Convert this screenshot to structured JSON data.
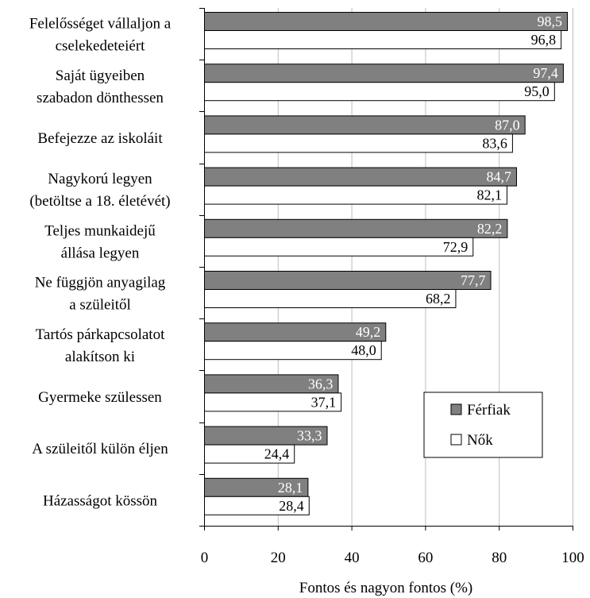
{
  "chart_data": {
    "type": "bar",
    "orientation": "horizontal",
    "categories": [
      [
        "Felelősséget vállaljon a",
        "cselekedeteiért"
      ],
      [
        "Saját ügyeiben",
        "szabadon dönthessen"
      ],
      [
        "Befejezze az iskoláit"
      ],
      [
        "Nagykorú legyen",
        "(betöltse a 18. életévét)"
      ],
      [
        "Teljes munkaidejű",
        "állása legyen"
      ],
      [
        "Ne függjön anyagilag",
        "a szüleitől"
      ],
      [
        "Tartós párkapcsolatot",
        "alakítson ki"
      ],
      [
        "Gyermeke szülessen"
      ],
      [
        "A szüleitől külön éljen"
      ],
      [
        "Házasságot kössön"
      ]
    ],
    "series": [
      {
        "name": "Férfiak",
        "color": "#808080",
        "label_color": "#ffffff",
        "values": [
          98.5,
          97.4,
          87.0,
          84.7,
          82.2,
          77.7,
          49.2,
          36.3,
          33.3,
          28.1
        ],
        "value_labels": [
          "98,5",
          "97,4",
          "87,0",
          "84,7",
          "82,2",
          "77,7",
          "49,2",
          "36,3",
          "33,3",
          "28,1"
        ]
      },
      {
        "name": "Nők",
        "color": "#ffffff",
        "label_color": "#000000",
        "values": [
          96.8,
          95.0,
          83.6,
          82.1,
          72.9,
          68.2,
          48.0,
          37.1,
          24.4,
          28.4
        ],
        "value_labels": [
          "96,8",
          "95,0",
          "83,6",
          "82,1",
          "72,9",
          "68,2",
          "48,0",
          "37,1",
          "24,4",
          "28,4"
        ]
      }
    ],
    "xlim": [
      0,
      100
    ],
    "xticks": [
      0,
      20,
      40,
      60,
      80,
      100
    ],
    "xlabel": "Fontos és nagyon fontos (%)",
    "grid": "vertical",
    "legend_position": "lower-right"
  }
}
